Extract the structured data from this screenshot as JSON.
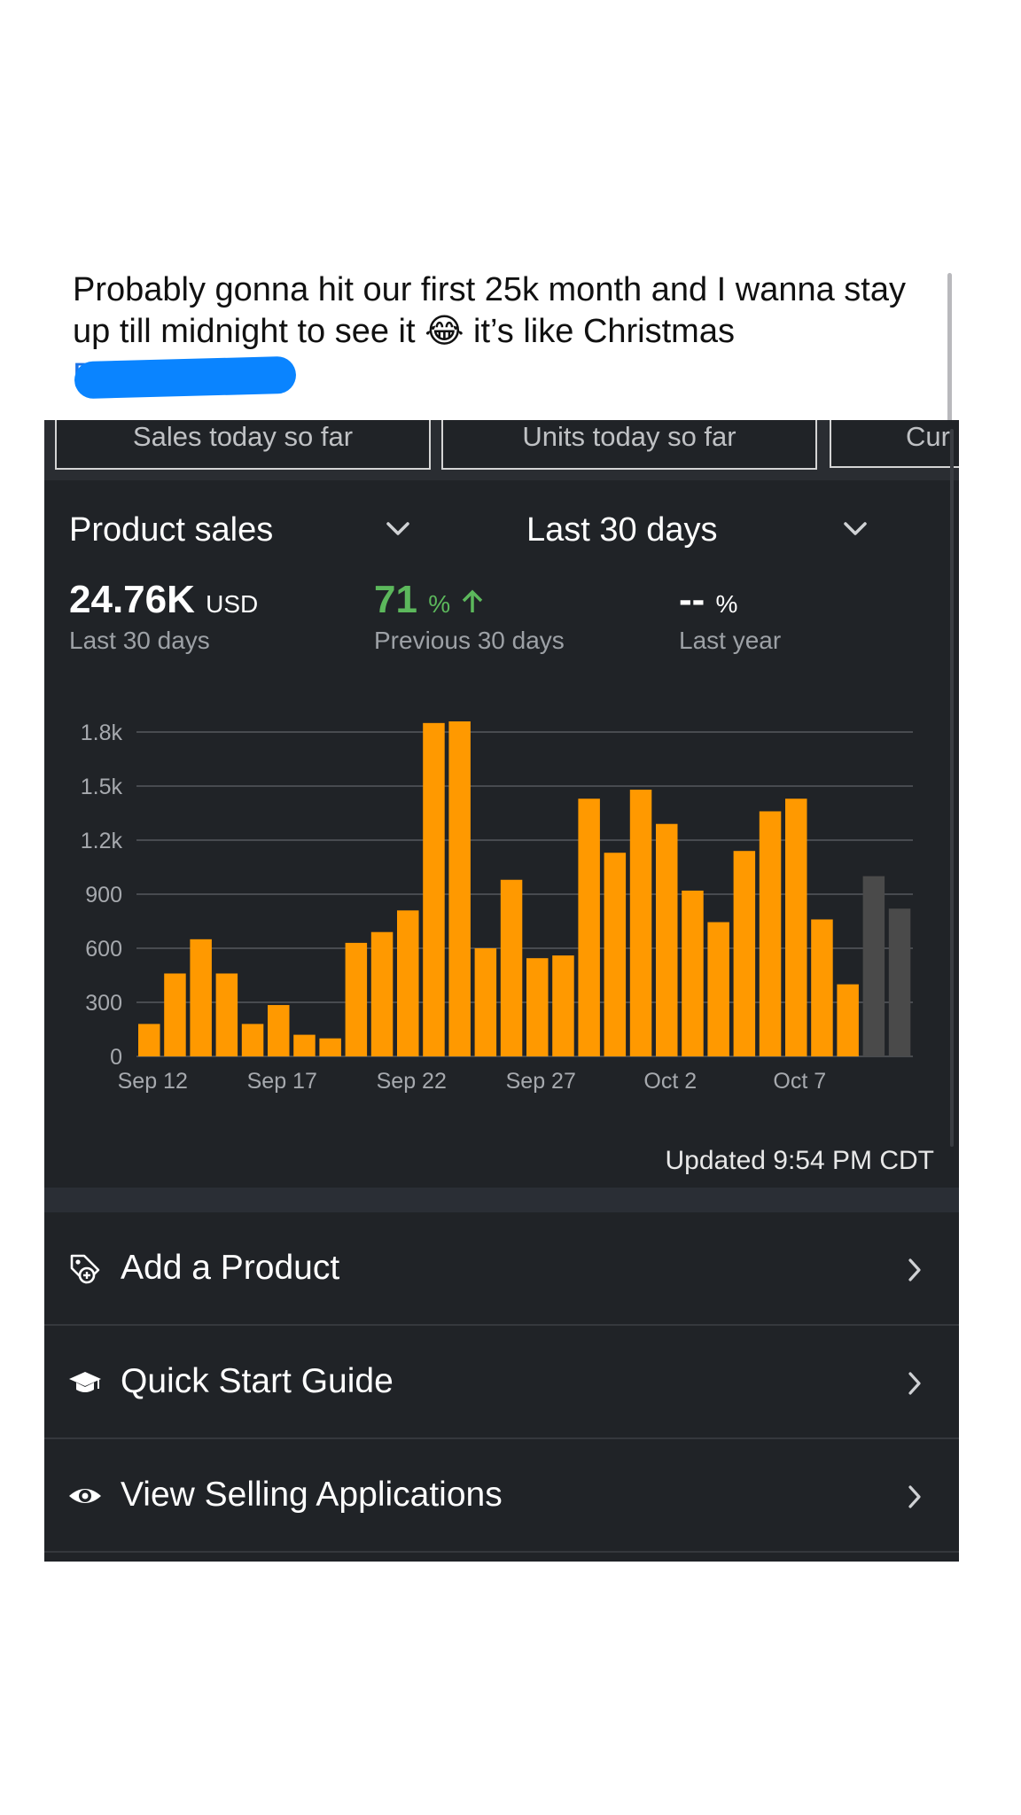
{
  "post": {
    "text": "Probably gonna hit our first 25k month and I wanna stay up till midnight to see it 😂 it’s like Christmas",
    "redacted_prefix": "B"
  },
  "tabs": [
    {
      "label": "Sales today so far"
    },
    {
      "label": "Units today so far"
    },
    {
      "label": "Cur"
    }
  ],
  "selectors": {
    "metric": "Product sales",
    "period": "Last 30 days"
  },
  "metrics": {
    "total_value": "24.76K",
    "total_unit": "USD",
    "total_label": "Last 30 days",
    "prev_value": "71",
    "prev_unit": "%",
    "prev_label": "Previous 30 days",
    "prev_color": "#5cb85c",
    "year_value": "--",
    "year_unit": "%",
    "year_label": "Last year"
  },
  "chart_data": {
    "type": "bar",
    "ylim": [
      0,
      1800
    ],
    "y_ticks": [
      "0",
      "300",
      "600",
      "900",
      "1.2k",
      "1.5k",
      "1.8k"
    ],
    "x_tick_labels": [
      "Sep 12",
      "Sep 17",
      "Sep 22",
      "Sep 27",
      "Oct 2",
      "Oct 7"
    ],
    "categories": [
      "Sep 12",
      "Sep 13",
      "Sep 14",
      "Sep 15",
      "Sep 16",
      "Sep 17",
      "Sep 18",
      "Sep 19",
      "Sep 20",
      "Sep 21",
      "Sep 22",
      "Sep 23",
      "Sep 24",
      "Sep 25",
      "Sep 26",
      "Sep 27",
      "Sep 28",
      "Sep 29",
      "Sep 30",
      "Oct 1",
      "Oct 2",
      "Oct 3",
      "Oct 4",
      "Oct 5",
      "Oct 6",
      "Oct 7",
      "Oct 8",
      "Oct 9",
      "Oct 10",
      "Oct 11",
      "Oct 12"
    ],
    "values": [
      180,
      460,
      650,
      460,
      180,
      285,
      120,
      100,
      630,
      690,
      810,
      1850,
      1860,
      600,
      980,
      545,
      560,
      1430,
      1130,
      1480,
      1290,
      920,
      745,
      1140,
      1360,
      1430,
      760,
      400,
      1000,
      820,
      0
    ],
    "bar_colors": [
      "#ff9900",
      "#ff9900",
      "#ff9900",
      "#ff9900",
      "#ff9900",
      "#ff9900",
      "#ff9900",
      "#ff9900",
      "#ff9900",
      "#ff9900",
      "#ff9900",
      "#ff9900",
      "#ff9900",
      "#ff9900",
      "#ff9900",
      "#ff9900",
      "#ff9900",
      "#ff9900",
      "#ff9900",
      "#ff9900",
      "#ff9900",
      "#ff9900",
      "#ff9900",
      "#ff9900",
      "#ff9900",
      "#ff9900",
      "#ff9900",
      "#ff9900",
      "#4a4a4a",
      "#4a4a4a",
      "#4a4a4a"
    ],
    "grid": true
  },
  "updated": "Updated 9:54 PM CDT",
  "menu": [
    {
      "label": "Add a Product",
      "icon": "tag-plus-icon"
    },
    {
      "label": "Quick Start Guide",
      "icon": "graduation-cap-icon"
    },
    {
      "label": "View Selling Applications",
      "icon": "eye-icon"
    }
  ]
}
